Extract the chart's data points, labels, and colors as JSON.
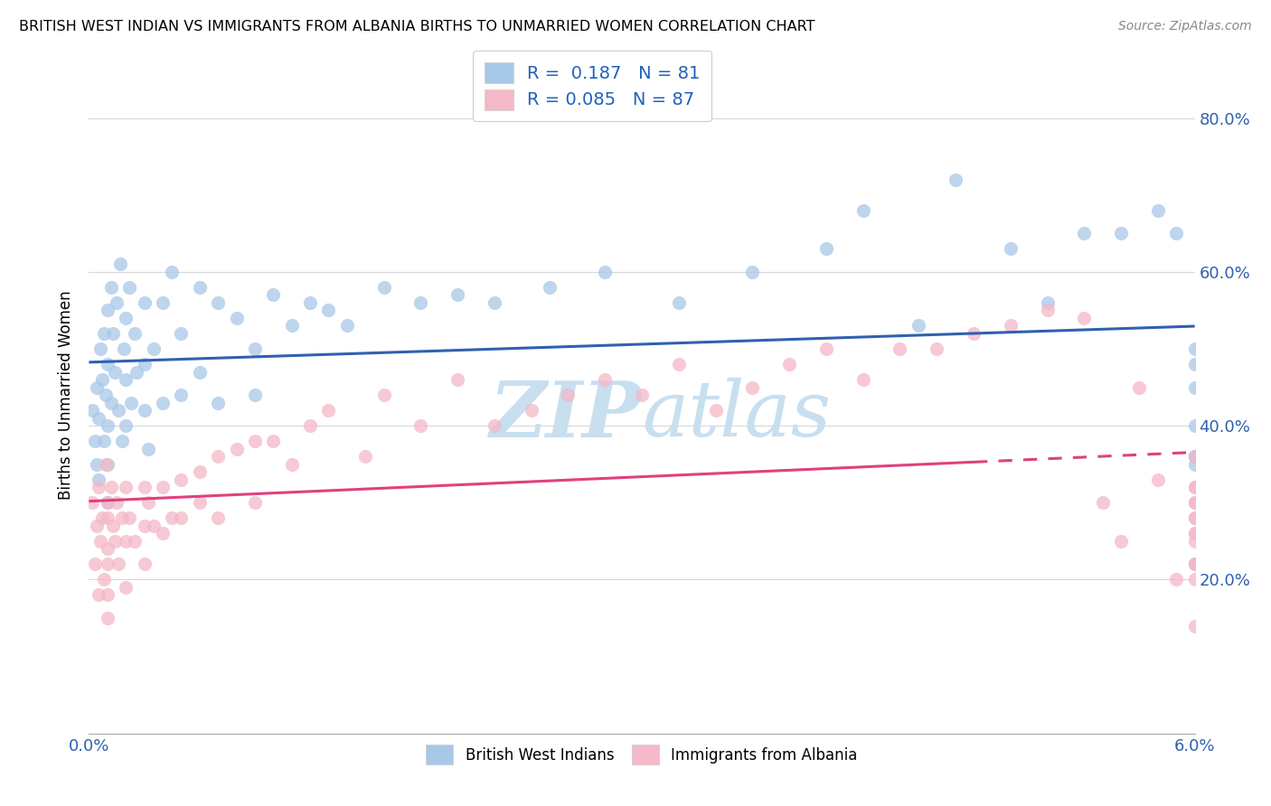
{
  "title": "BRITISH WEST INDIAN VS IMMIGRANTS FROM ALBANIA BIRTHS TO UNMARRIED WOMEN CORRELATION CHART",
  "source": "Source: ZipAtlas.com",
  "ylabel": "Births to Unmarried Women",
  "legend_blue_label": "British West Indians",
  "legend_pink_label": "Immigrants from Albania",
  "R_blue": 0.187,
  "N_blue": 81,
  "R_pink": 0.085,
  "N_pink": 87,
  "blue_color": "#a8c8e8",
  "pink_color": "#f4b8c8",
  "blue_line_color": "#3060b0",
  "pink_line_color": "#e04080",
  "watermark_color": "#c8dff0",
  "grid_color": "#d8d8d8",
  "xlim": [
    0.0,
    0.06
  ],
  "ylim": [
    0.0,
    0.88
  ],
  "y_ticks": [
    0.2,
    0.4,
    0.6,
    0.8
  ],
  "x_tick_positions": [
    0.0,
    0.01,
    0.02,
    0.03,
    0.04,
    0.05,
    0.06
  ],
  "blue_x": [
    0.0002,
    0.0003,
    0.0004,
    0.0004,
    0.0005,
    0.0005,
    0.0006,
    0.0007,
    0.0008,
    0.0008,
    0.0009,
    0.001,
    0.001,
    0.001,
    0.001,
    0.001,
    0.0012,
    0.0012,
    0.0013,
    0.0014,
    0.0015,
    0.0016,
    0.0017,
    0.0018,
    0.0019,
    0.002,
    0.002,
    0.002,
    0.0022,
    0.0023,
    0.0025,
    0.0026,
    0.003,
    0.003,
    0.003,
    0.0032,
    0.0035,
    0.004,
    0.004,
    0.0045,
    0.005,
    0.005,
    0.006,
    0.006,
    0.007,
    0.007,
    0.008,
    0.009,
    0.009,
    0.01,
    0.011,
    0.012,
    0.013,
    0.014,
    0.016,
    0.018,
    0.02,
    0.022,
    0.025,
    0.028,
    0.032,
    0.036,
    0.04,
    0.042,
    0.045,
    0.047,
    0.05,
    0.052,
    0.054,
    0.056,
    0.058,
    0.059,
    0.06,
    0.06,
    0.06,
    0.06,
    0.06,
    0.06,
    0.06,
    0.06,
    0.06
  ],
  "blue_y": [
    0.42,
    0.38,
    0.45,
    0.35,
    0.41,
    0.33,
    0.5,
    0.46,
    0.52,
    0.38,
    0.44,
    0.55,
    0.48,
    0.4,
    0.35,
    0.3,
    0.58,
    0.43,
    0.52,
    0.47,
    0.56,
    0.42,
    0.61,
    0.38,
    0.5,
    0.54,
    0.46,
    0.4,
    0.58,
    0.43,
    0.52,
    0.47,
    0.56,
    0.48,
    0.42,
    0.37,
    0.5,
    0.56,
    0.43,
    0.6,
    0.52,
    0.44,
    0.58,
    0.47,
    0.56,
    0.43,
    0.54,
    0.5,
    0.44,
    0.57,
    0.53,
    0.56,
    0.55,
    0.53,
    0.58,
    0.56,
    0.57,
    0.56,
    0.58,
    0.6,
    0.56,
    0.6,
    0.63,
    0.68,
    0.53,
    0.72,
    0.63,
    0.56,
    0.65,
    0.65,
    0.68,
    0.65,
    0.48,
    0.36,
    0.5,
    0.36,
    0.45,
    0.35,
    0.22,
    0.4,
    0.36
  ],
  "pink_x": [
    0.0002,
    0.0003,
    0.0004,
    0.0005,
    0.0005,
    0.0006,
    0.0007,
    0.0008,
    0.0009,
    0.001,
    0.001,
    0.001,
    0.001,
    0.001,
    0.001,
    0.0012,
    0.0013,
    0.0014,
    0.0015,
    0.0016,
    0.0018,
    0.002,
    0.002,
    0.002,
    0.0022,
    0.0025,
    0.003,
    0.003,
    0.003,
    0.0032,
    0.0035,
    0.004,
    0.004,
    0.0045,
    0.005,
    0.005,
    0.006,
    0.006,
    0.007,
    0.007,
    0.008,
    0.009,
    0.009,
    0.01,
    0.011,
    0.012,
    0.013,
    0.015,
    0.016,
    0.018,
    0.02,
    0.022,
    0.024,
    0.026,
    0.028,
    0.03,
    0.032,
    0.034,
    0.036,
    0.038,
    0.04,
    0.042,
    0.044,
    0.046,
    0.048,
    0.05,
    0.052,
    0.054,
    0.055,
    0.056,
    0.057,
    0.058,
    0.059,
    0.06,
    0.06,
    0.06,
    0.06,
    0.06,
    0.06,
    0.06,
    0.06,
    0.06,
    0.06,
    0.06,
    0.06,
    0.06,
    0.06
  ],
  "pink_y": [
    0.3,
    0.22,
    0.27,
    0.32,
    0.18,
    0.25,
    0.28,
    0.2,
    0.35,
    0.3,
    0.24,
    0.18,
    0.28,
    0.15,
    0.22,
    0.32,
    0.27,
    0.25,
    0.3,
    0.22,
    0.28,
    0.32,
    0.25,
    0.19,
    0.28,
    0.25,
    0.32,
    0.27,
    0.22,
    0.3,
    0.27,
    0.32,
    0.26,
    0.28,
    0.33,
    0.28,
    0.34,
    0.3,
    0.36,
    0.28,
    0.37,
    0.38,
    0.3,
    0.38,
    0.35,
    0.4,
    0.42,
    0.36,
    0.44,
    0.4,
    0.46,
    0.4,
    0.42,
    0.44,
    0.46,
    0.44,
    0.48,
    0.42,
    0.45,
    0.48,
    0.5,
    0.46,
    0.5,
    0.5,
    0.52,
    0.53,
    0.55,
    0.54,
    0.3,
    0.25,
    0.45,
    0.33,
    0.2,
    0.32,
    0.28,
    0.32,
    0.14,
    0.26,
    0.2,
    0.36,
    0.3,
    0.22,
    0.3,
    0.22,
    0.28,
    0.26,
    0.25
  ]
}
